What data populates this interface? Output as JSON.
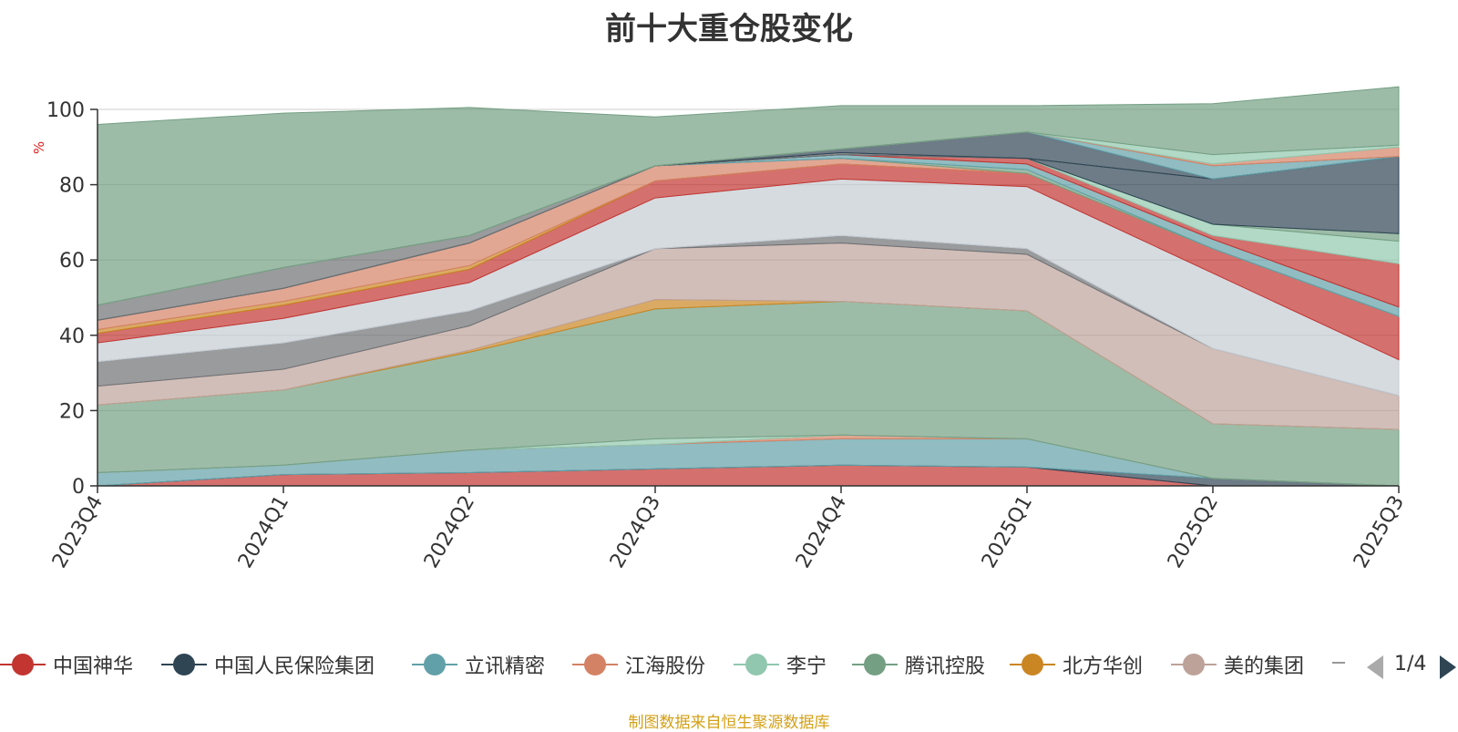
{
  "header": {
    "title": "前十大重仓股变化"
  },
  "footer": {
    "source": "制图数据来自恒生聚源数据库"
  },
  "legend": {
    "page": "1/4",
    "items": [
      {
        "label": "中国神华",
        "color": "#c23531"
      },
      {
        "label": "中国人民保险集团",
        "color": "#2f4554"
      },
      {
        "label": "立讯精密",
        "color": "#61a0a8"
      },
      {
        "label": "江海股份",
        "color": "#d48265"
      },
      {
        "label": "李宁",
        "color": "#91c7ae"
      },
      {
        "label": "腾讯控股",
        "color": "#749f83"
      },
      {
        "label": "北方华创",
        "color": "#ca8622"
      },
      {
        "label": "美的集团",
        "color": "#bda29a"
      }
    ]
  },
  "chart_data": {
    "type": "area",
    "title": "前十大重仓股变化",
    "ylabel": "%",
    "ylim": [
      0,
      100
    ],
    "yticks": [
      0,
      20,
      40,
      60,
      80,
      100
    ],
    "categories": [
      "2023Q4",
      "2024Q1",
      "2024Q2",
      "2024Q3",
      "2024Q4",
      "2025Q1",
      "2025Q2",
      "2025Q3"
    ],
    "grid": true,
    "stacked": true,
    "series": [
      {
        "name": "中国神华",
        "color": "#c23531",
        "values": [
          0.0,
          3.0,
          3.5,
          4.5,
          5.5,
          5.0,
          0.0,
          0.0
        ]
      },
      {
        "name": "中国人民保险集团",
        "color": "#2f4554",
        "values": [
          0.0,
          0.0,
          0.0,
          0.0,
          0.0,
          0.0,
          2.0,
          0.0
        ]
      },
      {
        "name": "立讯精密",
        "color": "#61a0a8",
        "values": [
          3.5,
          2.5,
          6.0,
          6.5,
          7.0,
          7.5,
          0.0,
          0.0
        ]
      },
      {
        "name": "江海股份",
        "color": "#d48265",
        "values": [
          0.0,
          0.0,
          0.0,
          0.0,
          1.0,
          0.0,
          0.0,
          0.0
        ]
      },
      {
        "name": "李宁",
        "color": "#91c7ae",
        "values": [
          0.0,
          0.0,
          0.0,
          1.5,
          0.0,
          0.0,
          0.0,
          0.0
        ]
      },
      {
        "name": "腾讯控股",
        "color": "#749f83",
        "values": [
          18.0,
          20.0,
          26.0,
          34.5,
          35.5,
          34.0,
          14.5,
          15.0
        ]
      },
      {
        "name": "北方华创",
        "color": "#ca8622",
        "values": [
          0.0,
          0.0,
          0.5,
          2.5,
          0.0,
          0.0,
          0.0,
          0.0
        ]
      },
      {
        "name": "美的集团",
        "color": "#bda29a",
        "values": [
          5.0,
          5.5,
          6.5,
          13.5,
          15.5,
          15.0,
          20.0,
          9.0
        ]
      },
      {
        "name": "",
        "color": "#6e7074",
        "values": [
          6.5,
          7.0,
          4.0,
          0.0,
          2.0,
          1.5,
          0.0,
          0.0
        ]
      },
      {
        "name": "",
        "color": "#c4ccd3",
        "values": [
          5.0,
          6.5,
          7.5,
          13.5,
          15.0,
          16.5,
          20.0,
          9.5
        ]
      },
      {
        "name": "",
        "color": "#c23531",
        "values": [
          2.5,
          3.5,
          3.5,
          4.5,
          4.0,
          3.5,
          6.5,
          11.5
        ]
      },
      {
        "name": "",
        "color": "#ca8622",
        "values": [
          1.0,
          1.0,
          1.0,
          0.0,
          0.0,
          0.0,
          0.0,
          0.0
        ]
      },
      {
        "name": "",
        "color": "#d48265",
        "values": [
          2.5,
          3.5,
          6.0,
          4.0,
          1.5,
          0.0,
          0.0,
          0.0
        ]
      },
      {
        "name": "",
        "color": "#749f83",
        "values": [
          0.0,
          0.0,
          0.0,
          0.0,
          0.0,
          1.0,
          0.0,
          0.0
        ]
      },
      {
        "name": "",
        "color": "#61a0a8",
        "values": [
          0.0,
          0.0,
          0.0,
          0.0,
          1.0,
          1.5,
          2.5,
          2.5
        ]
      },
      {
        "name": "",
        "color": "#c23531",
        "values": [
          0.0,
          0.0,
          0.0,
          0.0,
          0.0,
          1.5,
          1.0,
          11.5
        ]
      },
      {
        "name": "",
        "color": "#91c7ae",
        "values": [
          0.0,
          0.0,
          0.0,
          0.0,
          0.0,
          0.0,
          3.0,
          6.0
        ]
      },
      {
        "name": "",
        "color": "#749f83",
        "values": [
          0.0,
          0.0,
          0.0,
          0.0,
          0.0,
          0.0,
          0.0,
          2.0
        ]
      },
      {
        "name": "",
        "color": "#2f4554",
        "values": [
          0.0,
          0.0,
          0.0,
          0.0,
          0.0,
          0.0,
          12.0,
          20.5
        ]
      },
      {
        "name": "",
        "color": "#6e7074",
        "values": [
          4.0,
          5.5,
          2.0,
          0.0,
          0.5,
          0.0,
          0.0,
          0.0
        ]
      },
      {
        "name": "",
        "color": "#2f4554",
        "values": [
          0.0,
          0.0,
          0.0,
          0.0,
          1.0,
          7.0,
          0.0,
          0.0
        ]
      },
      {
        "name": "",
        "color": "#61a0a8",
        "values": [
          0.0,
          0.0,
          0.0,
          0.0,
          0.0,
          0.0,
          3.5,
          0.0
        ]
      },
      {
        "name": "",
        "color": "#d48265",
        "values": [
          0.0,
          0.0,
          0.0,
          0.0,
          0.0,
          0.0,
          0.5,
          2.5
        ]
      },
      {
        "name": "",
        "color": "#91c7ae",
        "values": [
          0.0,
          0.0,
          0.0,
          0.0,
          0.0,
          0.0,
          2.5,
          0.5
        ]
      },
      {
        "name": "",
        "color": "#749f83",
        "values": [
          48.0,
          41.0,
          34.0,
          13.0,
          11.5,
          7.0,
          13.5,
          15.5
        ]
      }
    ]
  }
}
